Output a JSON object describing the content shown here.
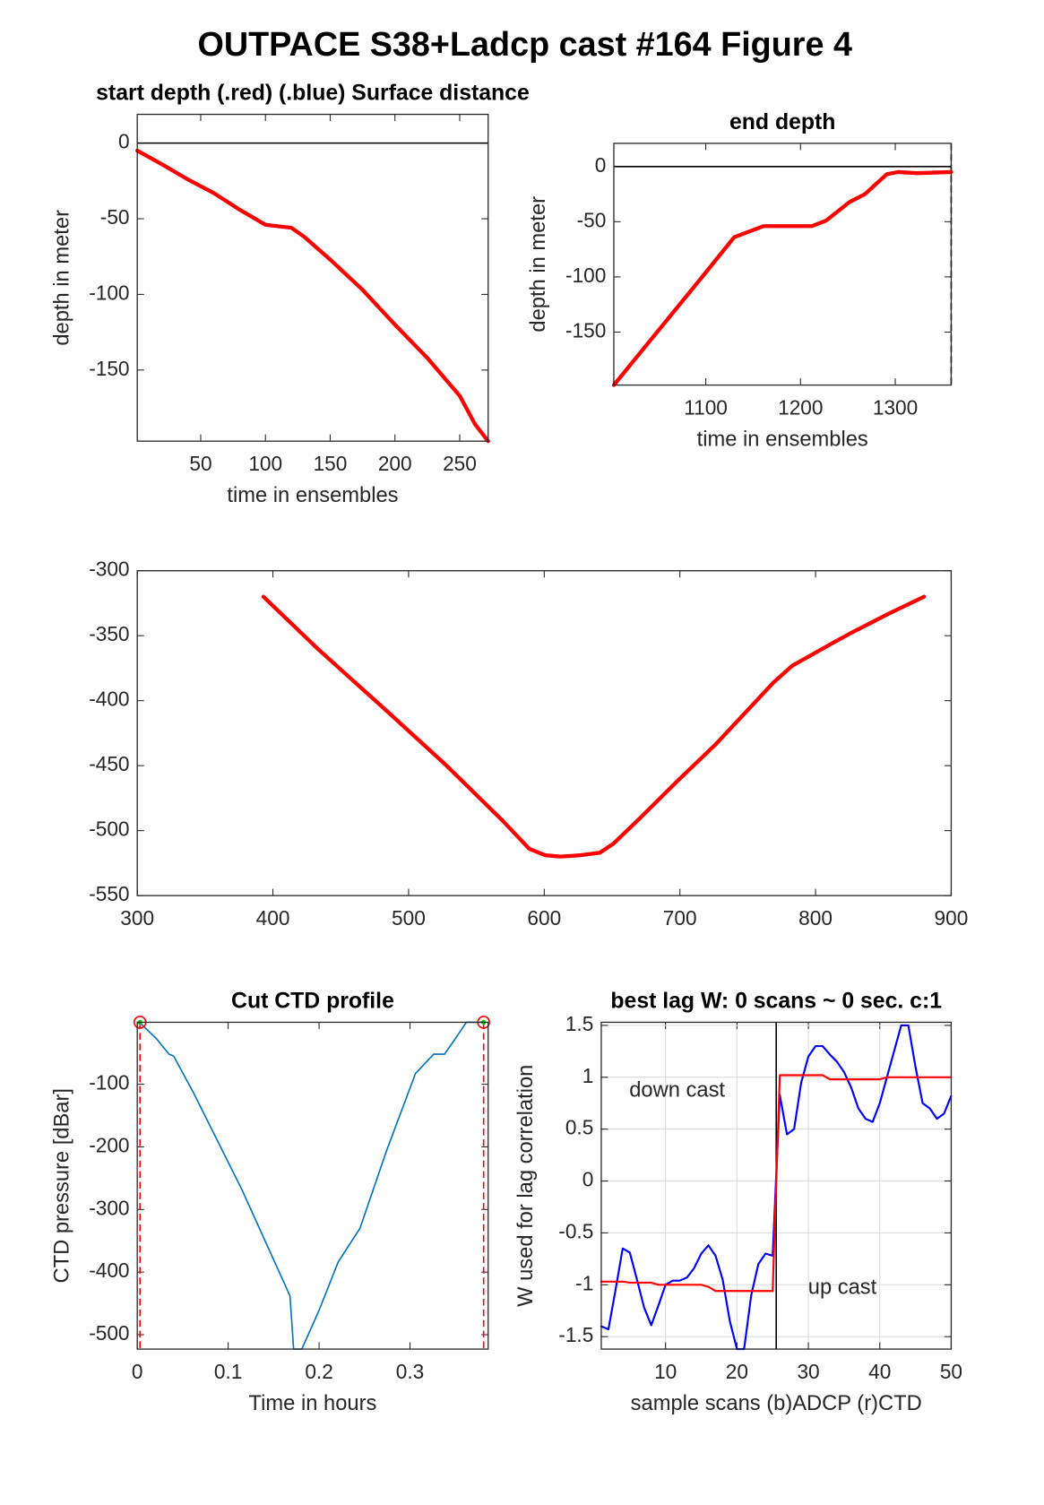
{
  "title": "OUTPACE S38+Ladcp cast #164    Figure 4",
  "chart_data": [
    {
      "type": "line",
      "title": "start depth (.red) (.blue) Surface distance",
      "xlabel": "time in ensembles",
      "ylabel": "depth in meter",
      "xlim": [
        1,
        272
      ],
      "ylim": [
        -197,
        19
      ],
      "xticks": [
        50,
        100,
        150,
        200,
        250
      ],
      "yticks": [
        -150,
        -100,
        -50,
        0
      ],
      "grid": false,
      "reference_lines": [
        {
          "axis": "y",
          "value": 0,
          "color": "#000000",
          "style": "solid"
        }
      ],
      "series": [
        {
          "color": "#ff0000",
          "x": [
            1,
            20,
            40,
            60,
            80,
            100,
            120,
            130,
            150,
            175,
            200,
            225,
            250,
            262,
            272
          ],
          "values": [
            -5,
            -14,
            -24,
            -33,
            -44,
            -54,
            -56,
            -62,
            -77,
            -97,
            -120,
            -142,
            -167,
            -186,
            -197
          ]
        }
      ]
    },
    {
      "type": "line",
      "title": "end depth",
      "xlabel": "time in ensembles",
      "ylabel": "depth in meter",
      "xlim": [
        1003,
        1359
      ],
      "ylim": [
        -198,
        21
      ],
      "xticks": [
        1100,
        1200,
        1300
      ],
      "yticks": [
        -150,
        -100,
        -50,
        0
      ],
      "grid": false,
      "reference_lines": [
        {
          "axis": "y",
          "value": 0,
          "color": "#000000",
          "style": "solid"
        },
        {
          "axis": "x",
          "value": 1359,
          "color": "#000000",
          "style": "dashed"
        }
      ],
      "series": [
        {
          "color": "#ff0000",
          "x": [
            1003,
            1100,
            1130,
            1161,
            1212,
            1227,
            1252,
            1268,
            1291,
            1303,
            1323,
            1359
          ],
          "values": [
            -198,
            -96,
            -64,
            -54,
            -54,
            -49,
            -32,
            -25,
            -7,
            -5,
            -6,
            -5
          ]
        }
      ]
    },
    {
      "type": "line",
      "xlim": [
        300,
        900
      ],
      "ylim": [
        -550,
        -300
      ],
      "xticks": [
        300,
        400,
        500,
        600,
        700,
        800,
        900
      ],
      "yticks": [
        -550,
        -500,
        -450,
        -400,
        -350,
        -300
      ],
      "grid": false,
      "series": [
        {
          "color": "#ff0000",
          "x": [
            393,
            434,
            484,
            527,
            569,
            589,
            601,
            612,
            626,
            641,
            651,
            669,
            698,
            726,
            769,
            783,
            812,
            826,
            854,
            880
          ],
          "values": [
            -320,
            -361,
            -408,
            -449,
            -492,
            -514,
            -519,
            -520,
            -519,
            -517,
            -510,
            -492,
            -462,
            -434,
            -386,
            -373,
            -356,
            -348,
            -333,
            -320
          ]
        }
      ]
    },
    {
      "type": "line",
      "title": "Cut CTD profile",
      "xlabel": "Time in hours",
      "ylabel": "CTD pressure [dBar]",
      "xlim": [
        0,
        0.386
      ],
      "ylim": [
        -523,
        -1
      ],
      "xticks": [
        0,
        0.1,
        0.2,
        0.3
      ],
      "yticks": [
        -500,
        -400,
        -300,
        -200,
        -100
      ],
      "grid": false,
      "reference_lines": [
        {
          "axis": "x",
          "value": 0.003,
          "color": "#ff0000",
          "style": "dashed"
        },
        {
          "axis": "x",
          "value": 0.381,
          "color": "#ff0000",
          "style": "dashed"
        }
      ],
      "markers": {
        "color": "#ff0000",
        "x": [
          0.003,
          0.381
        ],
        "values": [
          -1,
          -1
        ]
      },
      "series": [
        {
          "color": "#0072bd",
          "x": [
            0.003,
            0.021,
            0.035,
            0.04,
            0.062,
            0.115,
            0.168,
            0.172,
            0.181,
            0.2,
            0.221,
            0.245,
            0.274,
            0.306,
            0.326,
            0.338,
            0.349,
            0.362,
            0.381
          ],
          "values": [
            -2,
            -27,
            -52,
            -55,
            -114,
            -268,
            -438,
            -523,
            -523,
            -461,
            -384,
            -330,
            -207,
            -83,
            -52,
            -52,
            -29,
            -1,
            -1
          ]
        }
      ]
    },
    {
      "type": "line",
      "title": "best lag W: 0 scans ~ 0 sec.  c:1",
      "xlabel": "sample scans (b)ADCP (r)CTD",
      "ylabel": "W used for lag correlation",
      "xlim": [
        1,
        50
      ],
      "ylim": [
        -1.62,
        1.53
      ],
      "xticks": [
        10,
        20,
        30,
        40,
        50
      ],
      "yticks": [
        -1.5,
        -1,
        -0.5,
        0,
        0.5,
        1,
        1.5
      ],
      "grid": true,
      "annotations": [
        "down cast",
        "up cast"
      ],
      "reference_lines": [
        {
          "axis": "x",
          "value": 25.5,
          "color": "#000000",
          "style": "solid"
        }
      ],
      "series": [
        {
          "color": "#0000ff",
          "x": [
            1,
            2,
            3,
            4,
            5,
            6,
            7,
            8,
            9,
            10,
            11,
            12,
            13,
            14,
            15,
            16,
            17,
            18,
            19,
            20,
            21,
            22,
            23,
            24,
            25,
            26,
            27,
            28,
            29,
            30,
            31,
            32,
            33,
            34,
            35,
            36,
            37,
            38,
            39,
            40,
            41,
            42,
            43,
            44,
            45,
            46,
            47,
            48,
            49,
            50
          ],
          "values": [
            -1.4,
            -1.43,
            -1.05,
            -0.65,
            -0.69,
            -0.95,
            -1.22,
            -1.39,
            -1.2,
            -1.0,
            -0.96,
            -0.96,
            -0.93,
            -0.84,
            -0.7,
            -0.62,
            -0.72,
            -0.95,
            -1.35,
            -1.62,
            -1.62,
            -1.1,
            -0.8,
            -0.7,
            -0.72,
            0.83,
            0.45,
            0.5,
            0.95,
            1.2,
            1.3,
            1.3,
            1.22,
            1.15,
            1.05,
            0.9,
            0.7,
            0.6,
            0.57,
            0.75,
            1.0,
            1.25,
            1.5,
            1.5,
            1.1,
            0.75,
            0.7,
            0.6,
            0.65,
            0.82
          ]
        },
        {
          "color": "#ff0000",
          "x": [
            1,
            2,
            3,
            4,
            5,
            6,
            7,
            8,
            9,
            10,
            11,
            12,
            13,
            14,
            15,
            16,
            17,
            18,
            19,
            20,
            21,
            22,
            23,
            24,
            25,
            26,
            27,
            28,
            29,
            30,
            31,
            32,
            33,
            34,
            35,
            36,
            37,
            38,
            39,
            40,
            41,
            42,
            43,
            44,
            45,
            46,
            47,
            48,
            49,
            50
          ],
          "values": [
            -0.97,
            -0.97,
            -0.97,
            -0.97,
            -0.98,
            -0.98,
            -0.98,
            -0.98,
            -1.0,
            -1.0,
            -1.0,
            -1.0,
            -1.0,
            -1.0,
            -1.0,
            -1.02,
            -1.06,
            -1.06,
            -1.06,
            -1.06,
            -1.06,
            -1.06,
            -1.06,
            -1.06,
            -1.06,
            1.02,
            1.02,
            1.02,
            1.02,
            1.02,
            1.02,
            1.02,
            0.98,
            0.98,
            0.98,
            0.98,
            0.98,
            0.98,
            0.98,
            0.98,
            1.0,
            1.0,
            1.0,
            1.0,
            1.0,
            1.0,
            1.0,
            1.0,
            1.0,
            1.0
          ]
        }
      ]
    }
  ]
}
